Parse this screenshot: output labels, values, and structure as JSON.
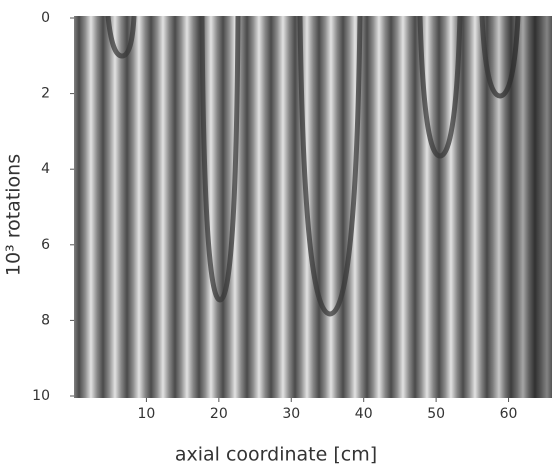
{
  "chart_data": {
    "type": "spacetime",
    "x_label": "axial coordinate [cm]",
    "y_label": "10³ rotations",
    "xlim": [
      0,
      66
    ],
    "xticks": [
      10,
      20,
      30,
      40,
      50,
      60
    ],
    "ylim": [
      0,
      10
    ],
    "yticks": [
      0,
      2,
      4,
      6,
      8,
      10
    ],
    "y_inverted": true
  }
}
